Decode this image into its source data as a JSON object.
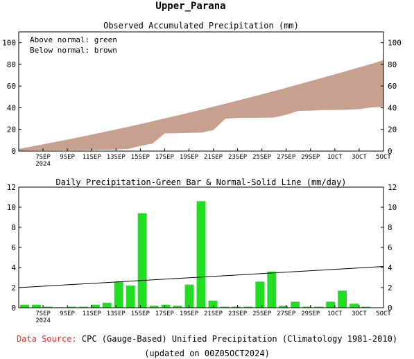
{
  "title": "Upper_Parana",
  "colors": {
    "above": "#22dd22",
    "below": "#c8a090",
    "bar": "#22dd22",
    "source_label": "#e03030"
  },
  "footer": {
    "source_label": "Data Source:",
    "source_text": "CPC (Gauge-Based) Unified Precipitation (Climatology 1981-2010)",
    "updated": "(updated on 00Z05OCT2024)"
  },
  "chart_data": [
    {
      "type": "area",
      "title": "Observed Accumulated Precipitation (mm)",
      "legend": [
        "Above normal: green",
        "Below normal: brown"
      ],
      "legend_position": "top-left",
      "x_range": [
        "2024-09-05",
        "2024-10-05"
      ],
      "xticks": [
        {
          "date": "2024-09-07",
          "label": "7SEP",
          "sub": "2024"
        },
        {
          "date": "2024-09-09",
          "label": "9SEP"
        },
        {
          "date": "2024-09-11",
          "label": "11SEP"
        },
        {
          "date": "2024-09-13",
          "label": "13SEP"
        },
        {
          "date": "2024-09-15",
          "label": "15SEP"
        },
        {
          "date": "2024-09-17",
          "label": "17SEP"
        },
        {
          "date": "2024-09-19",
          "label": "19SEP"
        },
        {
          "date": "2024-09-21",
          "label": "21SEP"
        },
        {
          "date": "2024-09-23",
          "label": "23SEP"
        },
        {
          "date": "2024-09-25",
          "label": "25SEP"
        },
        {
          "date": "2024-09-27",
          "label": "27SEP"
        },
        {
          "date": "2024-09-29",
          "label": "29SEP"
        },
        {
          "date": "2024-10-01",
          "label": "1OCT"
        },
        {
          "date": "2024-10-03",
          "label": "3OCT"
        },
        {
          "date": "2024-10-05",
          "label": "5OCT"
        }
      ],
      "ylim": [
        0,
        110
      ],
      "yticks": [
        0,
        20,
        40,
        60,
        80,
        100
      ],
      "dates": [
        "2024-09-05",
        "2024-09-06",
        "2024-09-07",
        "2024-09-08",
        "2024-09-09",
        "2024-09-10",
        "2024-09-11",
        "2024-09-12",
        "2024-09-13",
        "2024-09-14",
        "2024-09-15",
        "2024-09-16",
        "2024-09-17",
        "2024-09-18",
        "2024-09-19",
        "2024-09-20",
        "2024-09-21",
        "2024-09-22",
        "2024-09-23",
        "2024-09-24",
        "2024-09-25",
        "2024-09-26",
        "2024-09-27",
        "2024-09-28",
        "2024-09-29",
        "2024-09-30",
        "2024-10-01",
        "2024-10-02",
        "2024-10-03",
        "2024-10-04",
        "2024-10-05"
      ],
      "observed": [
        0.3,
        0.6,
        0.7,
        0.8,
        0.8,
        0.9,
        1.0,
        1.2,
        1.5,
        2.0,
        4.7,
        6.9,
        16.3,
        16.5,
        16.8,
        17.0,
        19.3,
        29.9,
        30.6,
        30.7,
        30.8,
        30.9,
        33.5,
        37.1,
        37.3,
        37.9,
        38.0,
        38.1,
        38.7,
        40.4,
        40.8
      ],
      "normal": [
        2.0,
        4.1,
        6.2,
        8.4,
        10.6,
        12.9,
        15.2,
        17.6,
        20.0,
        22.4,
        24.9,
        27.5,
        30.1,
        32.7,
        35.4,
        38.1,
        40.9,
        43.7,
        46.6,
        49.5,
        52.4,
        55.4,
        58.4,
        61.5,
        64.6,
        67.7,
        70.8,
        74.0,
        77.2,
        80.4,
        84.0
      ]
    },
    {
      "type": "bar",
      "title": "Daily Precipitation-Green Bar & Normal-Solid Line (mm/day)",
      "x_range": [
        "2024-09-05",
        "2024-10-05"
      ],
      "ylim": [
        0,
        12
      ],
      "yticks": [
        0,
        2,
        4,
        6,
        8,
        10,
        12
      ],
      "dates": [
        "2024-09-05",
        "2024-09-06",
        "2024-09-07",
        "2024-09-08",
        "2024-09-09",
        "2024-09-10",
        "2024-09-11",
        "2024-09-12",
        "2024-09-13",
        "2024-09-14",
        "2024-09-15",
        "2024-09-16",
        "2024-09-17",
        "2024-09-18",
        "2024-09-19",
        "2024-09-20",
        "2024-09-21",
        "2024-09-22",
        "2024-09-23",
        "2024-09-24",
        "2024-09-25",
        "2024-09-26",
        "2024-09-27",
        "2024-09-28",
        "2024-09-29",
        "2024-09-30",
        "2024-10-01",
        "2024-10-02",
        "2024-10-03",
        "2024-10-04",
        "2024-10-05"
      ],
      "values": [
        0.3,
        0.3,
        0.1,
        0.05,
        0.1,
        0.1,
        0.3,
        0.5,
        2.6,
        2.2,
        9.4,
        0.2,
        0.3,
        0.2,
        2.3,
        10.6,
        0.7,
        0.1,
        0.1,
        0.1,
        2.6,
        3.6,
        0.2,
        0.6,
        0.1,
        0.1,
        0.6,
        1.7,
        0.4,
        0.1,
        0.0
      ],
      "normal_line": [
        2.0,
        4.1
      ],
      "bar_color": "#22dd22"
    }
  ]
}
